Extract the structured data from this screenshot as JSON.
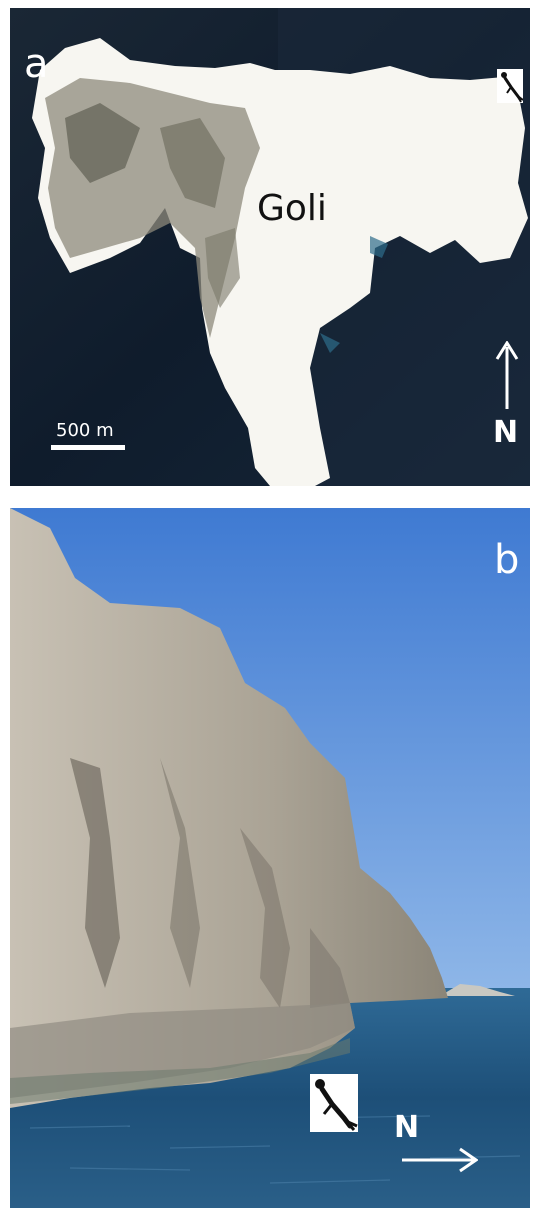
{
  "panel_a": {
    "label": "a",
    "island_name": "Goli",
    "scale_label": "500 m",
    "north_label": "N",
    "icons": [
      "diver-icon",
      "north-arrow-icon"
    ]
  },
  "panel_b": {
    "label": "b",
    "north_label": "N",
    "icons": [
      "diver-icon",
      "north-arrow-icon"
    ]
  },
  "colors": {
    "sea_dark": "#0f1d2e",
    "island": "#f6f4ee",
    "sky": "#5f93dc",
    "cliff": "#b9b2a6",
    "water": "#1d4f78"
  }
}
